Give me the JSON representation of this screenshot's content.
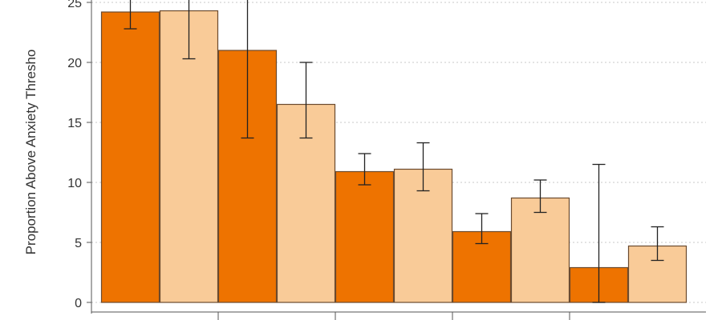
{
  "colors": {
    "dark_bar": "#ee7300",
    "light_bar": "#f9cb98",
    "bar_stroke": "#6b4a2e",
    "grid": "#c8c8c8",
    "axis": "#555555",
    "error_bar": "#222222"
  },
  "chart_data": {
    "type": "bar",
    "ylabel": "Proportion Above Anxiety Thresho",
    "ylim": [
      0,
      25.5
    ],
    "yticks": [
      0,
      5,
      10,
      15,
      20,
      25
    ],
    "grid": "horizontal dotted",
    "bars": [
      {
        "value": 24.2,
        "err_low": 22.8,
        "err_high": 26.5,
        "color_key": "dark_bar"
      },
      {
        "value": 24.3,
        "err_low": 20.3,
        "err_high": 26.5,
        "color_key": "light_bar"
      },
      {
        "value": 21.0,
        "err_low": 13.7,
        "err_high": 26.5,
        "color_key": "dark_bar"
      },
      {
        "value": 16.5,
        "err_low": 13.7,
        "err_high": 20.0,
        "color_key": "light_bar"
      },
      {
        "value": 10.9,
        "err_low": 9.8,
        "err_high": 12.4,
        "color_key": "dark_bar"
      },
      {
        "value": 11.1,
        "err_low": 9.3,
        "err_high": 13.3,
        "color_key": "light_bar"
      },
      {
        "value": 5.9,
        "err_low": 4.9,
        "err_high": 7.4,
        "color_key": "dark_bar"
      },
      {
        "value": 8.7,
        "err_low": 7.5,
        "err_high": 10.2,
        "color_key": "light_bar"
      },
      {
        "value": 2.9,
        "err_low": 0.0,
        "err_high": 11.5,
        "color_key": "dark_bar"
      },
      {
        "value": 4.7,
        "err_low": 3.5,
        "err_high": 6.3,
        "color_key": "light_bar"
      }
    ]
  }
}
